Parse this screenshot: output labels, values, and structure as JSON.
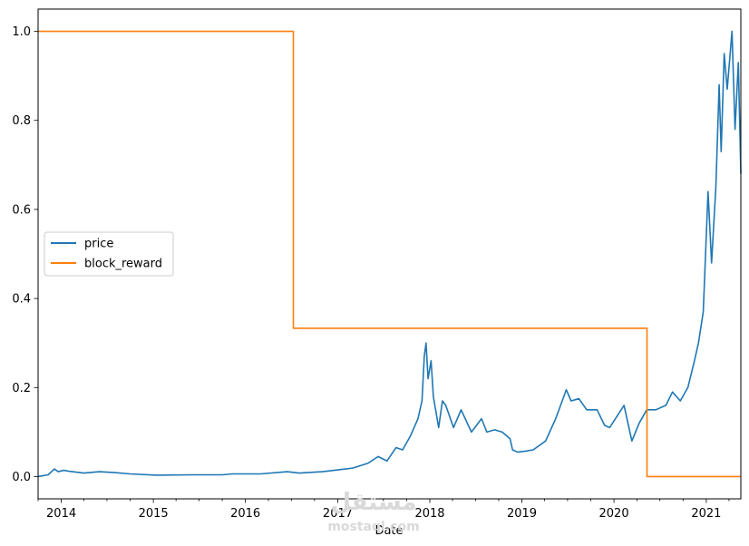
{
  "chart_data": {
    "type": "line",
    "xlabel": "Date",
    "ylabel": "",
    "xlim": [
      "2013-10-01",
      "2021-05-18"
    ],
    "ylim": [
      -0.05,
      1.05
    ],
    "x_ticks": [
      "2014",
      "2015",
      "2016",
      "2017",
      "2018",
      "2019",
      "2020",
      "2021"
    ],
    "y_ticks": [
      "0.0",
      "0.2",
      "0.4",
      "0.6",
      "0.8",
      "1.0"
    ],
    "grid": false,
    "legend_position": "center-left",
    "series": [
      {
        "name": "price",
        "color": "#1f77b4",
        "points": [
          [
            "2013-10-01",
            0.0
          ],
          [
            "2013-11-10",
            0.004
          ],
          [
            "2013-11-25",
            0.012
          ],
          [
            "2013-12-05",
            0.017
          ],
          [
            "2013-12-20",
            0.011
          ],
          [
            "2014-01-10",
            0.014
          ],
          [
            "2014-02-01",
            0.012
          ],
          [
            "2014-03-01",
            0.01
          ],
          [
            "2014-04-01",
            0.008
          ],
          [
            "2014-06-01",
            0.011
          ],
          [
            "2014-08-01",
            0.009
          ],
          [
            "2014-10-01",
            0.006
          ],
          [
            "2015-01-15",
            0.003
          ],
          [
            "2015-06-01",
            0.004
          ],
          [
            "2015-10-01",
            0.004
          ],
          [
            "2015-11-10",
            0.006
          ],
          [
            "2016-01-01",
            0.006
          ],
          [
            "2016-03-01",
            0.006
          ],
          [
            "2016-06-15",
            0.011
          ],
          [
            "2016-08-01",
            0.008
          ],
          [
            "2016-11-01",
            0.011
          ],
          [
            "2017-01-01",
            0.015
          ],
          [
            "2017-03-01",
            0.019
          ],
          [
            "2017-05-01",
            0.03
          ],
          [
            "2017-06-10",
            0.045
          ],
          [
            "2017-07-15",
            0.035
          ],
          [
            "2017-08-20",
            0.065
          ],
          [
            "2017-09-15",
            0.06
          ],
          [
            "2017-10-15",
            0.09
          ],
          [
            "2017-11-15",
            0.13
          ],
          [
            "2017-12-01",
            0.17
          ],
          [
            "2017-12-10",
            0.27
          ],
          [
            "2017-12-17",
            0.3
          ],
          [
            "2017-12-25",
            0.22
          ],
          [
            "2018-01-06",
            0.26
          ],
          [
            "2018-01-15",
            0.18
          ],
          [
            "2018-02-05",
            0.11
          ],
          [
            "2018-02-20",
            0.17
          ],
          [
            "2018-03-05",
            0.16
          ],
          [
            "2018-04-05",
            0.11
          ],
          [
            "2018-05-05",
            0.15
          ],
          [
            "2018-06-15",
            0.1
          ],
          [
            "2018-07-25",
            0.13
          ],
          [
            "2018-08-15",
            0.1
          ],
          [
            "2018-09-15",
            0.105
          ],
          [
            "2018-10-15",
            0.1
          ],
          [
            "2018-11-15",
            0.085
          ],
          [
            "2018-11-25",
            0.06
          ],
          [
            "2018-12-15",
            0.055
          ],
          [
            "2019-01-15",
            0.057
          ],
          [
            "2019-02-15",
            0.06
          ],
          [
            "2019-04-05",
            0.08
          ],
          [
            "2019-05-15",
            0.13
          ],
          [
            "2019-06-26",
            0.195
          ],
          [
            "2019-07-15",
            0.17
          ],
          [
            "2019-08-15",
            0.175
          ],
          [
            "2019-09-15",
            0.15
          ],
          [
            "2019-10-26",
            0.15
          ],
          [
            "2019-11-25",
            0.115
          ],
          [
            "2019-12-15",
            0.11
          ],
          [
            "2020-02-10",
            0.16
          ],
          [
            "2020-03-12",
            0.08
          ],
          [
            "2020-04-10",
            0.12
          ],
          [
            "2020-05-10",
            0.15
          ],
          [
            "2020-06-15",
            0.15
          ],
          [
            "2020-07-25",
            0.16
          ],
          [
            "2020-08-20",
            0.19
          ],
          [
            "2020-09-20",
            0.17
          ],
          [
            "2020-10-20",
            0.2
          ],
          [
            "2020-11-15",
            0.26
          ],
          [
            "2020-12-01",
            0.3
          ],
          [
            "2020-12-20",
            0.37
          ],
          [
            "2021-01-08",
            0.64
          ],
          [
            "2021-01-22",
            0.48
          ],
          [
            "2021-02-08",
            0.65
          ],
          [
            "2021-02-21",
            0.88
          ],
          [
            "2021-03-01",
            0.73
          ],
          [
            "2021-03-13",
            0.95
          ],
          [
            "2021-03-25",
            0.87
          ],
          [
            "2021-04-13",
            1.0
          ],
          [
            "2021-04-25",
            0.78
          ],
          [
            "2021-05-08",
            0.93
          ],
          [
            "2021-05-18",
            0.68
          ]
        ]
      },
      {
        "name": "block_reward",
        "color": "#ff7f0e",
        "points": [
          [
            "2013-10-01",
            1.0
          ],
          [
            "2016-07-09",
            1.0
          ],
          [
            "2016-07-09",
            0.333
          ],
          [
            "2020-05-11",
            0.333
          ],
          [
            "2020-05-11",
            0.0
          ],
          [
            "2021-05-18",
            0.0
          ]
        ]
      }
    ]
  },
  "watermark": {
    "arabic": "مستقل",
    "latin": "mostaql.com"
  }
}
